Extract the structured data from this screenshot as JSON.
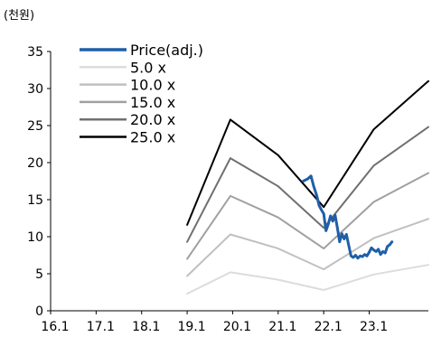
{
  "chart_data": {
    "type": "line",
    "unit_label": "(천원)",
    "xlabel": "",
    "ylabel": "",
    "x_ticks": [
      "16.1",
      "17.1",
      "18.1",
      "19.1",
      "20.1",
      "21.1",
      "22.1",
      "23.1"
    ],
    "xlim": [
      2016.0,
      2024.3
    ],
    "ylim": [
      0,
      35
    ],
    "y_ticks": [
      0,
      5,
      10,
      15,
      20,
      25,
      30,
      35
    ],
    "grid": false,
    "legend_position": "top-left",
    "band_x": [
      2019.0,
      2019.95,
      2021.0,
      2022.0,
      2023.1,
      2024.3
    ],
    "series": [
      {
        "name": "Price(adj.)",
        "color": "#1f5fa8",
        "width": 3,
        "x": [
          2021.55,
          2021.65,
          2021.72,
          2021.78,
          2021.85,
          2021.9,
          2021.95,
          2022.0,
          2022.05,
          2022.1,
          2022.15,
          2022.2,
          2022.25,
          2022.3,
          2022.35,
          2022.4,
          2022.45,
          2022.5,
          2022.55,
          2022.6,
          2022.65,
          2022.7,
          2022.75,
          2022.8,
          2022.85,
          2022.9,
          2022.95,
          2023.0,
          2023.05,
          2023.1,
          2023.15,
          2023.2,
          2023.25,
          2023.3,
          2023.35,
          2023.4,
          2023.45,
          2023.5
        ],
        "y": [
          17.5,
          17.8,
          18.2,
          16.8,
          15.5,
          14.2,
          13.6,
          13.1,
          10.8,
          11.7,
          12.8,
          12.1,
          12.9,
          11.2,
          9.3,
          10.4,
          9.7,
          10.3,
          8.8,
          7.4,
          7.2,
          7.5,
          7.1,
          7.4,
          7.3,
          7.6,
          7.4,
          7.9,
          8.5,
          8.2,
          8.0,
          8.3,
          7.6,
          8.0,
          7.8,
          8.7,
          8.9,
          9.3
        ]
      },
      {
        "name": "5.0 x",
        "color": "#dcdcdc",
        "width": 2,
        "y": [
          2.3,
          5.2,
          4.2,
          2.8,
          4.9,
          6.2
        ]
      },
      {
        "name": "10.0 x",
        "color": "#c0c0c0",
        "width": 2,
        "y": [
          4.7,
          10.3,
          8.4,
          5.6,
          9.8,
          12.4
        ]
      },
      {
        "name": "15.0 x",
        "color": "#a0a0a0",
        "width": 2,
        "y": [
          7.0,
          15.5,
          12.6,
          8.4,
          14.7,
          18.6
        ]
      },
      {
        "name": "20.0 x",
        "color": "#707070",
        "width": 2,
        "y": [
          9.3,
          20.6,
          16.8,
          11.2,
          19.6,
          24.8
        ]
      },
      {
        "name": "25.0 x",
        "color": "#000000",
        "width": 2,
        "y": [
          11.6,
          25.8,
          21.0,
          14.0,
          24.5,
          31.0
        ]
      }
    ]
  }
}
